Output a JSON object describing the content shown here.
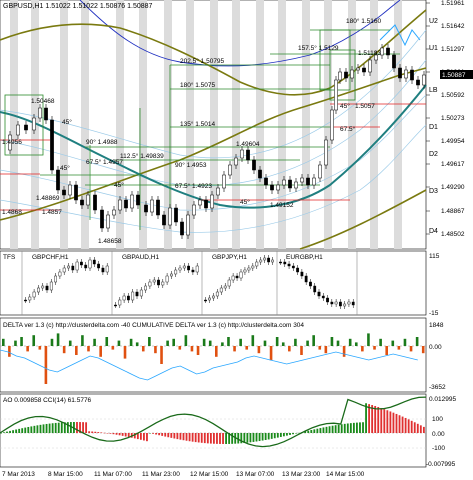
{
  "main": {
    "title": "GBPUSD,H1  1.51022  1.51022  1.50876  1.50887",
    "last_price": "1.50887",
    "price_axis": [
      "1.51961",
      "1.51642",
      "1.51297",
      "1.51001",
      "1.50592",
      "1.50273",
      "1.49954",
      "1.49617",
      "1.49290",
      "1.48867",
      "1.48502"
    ],
    "levels": {
      "U2": "U2",
      "U1": "U1",
      "LB": "LB",
      "D1": "D1",
      "D2": "D2",
      "D3": "D3",
      "D4": "D4"
    },
    "annotations": {
      "a1": "180° 1.5160",
      "a2": "157.5° 1.5129",
      "a3": "1.51183",
      "a4": "202.5° 1.50795",
      "a5": "180° 1.5075",
      "a6": "1.50468",
      "a7": "135° 1.5014",
      "a8": "1.49604",
      "a9": "90° 1.4988",
      "a10": "112.5° 1.49839",
      "a11": "67.5° 1.4957",
      "a12": "90° 1.4953",
      "a13": "67.5° 1.4923",
      "a14": "1.49152",
      "a15": "1.48869",
      "a16": "1.48658",
      "a17": "45°",
      "a18": "45°",
      "a19": "45°",
      "a20": "45°",
      "a21": "45°",
      "a22": "45°",
      "a23": "67.5°",
      "a24": "1.5057",
      "a25": "1.4956",
      "a26": "1.4868",
      "a27": "1.4857"
    }
  },
  "tfs": {
    "label": "TFS",
    "pairs": [
      "GBPCHF,H1",
      "GBPAUD,H1",
      "GBPJPY,H1",
      "EURGBP,H1"
    ],
    "axis": [
      "115",
      "-15"
    ]
  },
  "delta": {
    "title": "DELTA ver 1.3 (c) http://clusterdelta.com  -40  CUMULATIVE DELTA  ver 1.3 (c) http://clusterdelta.com  304",
    "axis": [
      "1848",
      "0.00",
      "-3652"
    ]
  },
  "ao": {
    "title": "AO 0.009858  CCI(14) 61.5776",
    "axis": [
      "0.012995",
      "100",
      "0.00",
      "-100",
      "-0.007995"
    ]
  },
  "time_axis": [
    "7 Mar 2013",
    "8 Mar 15:00",
    "11 Mar 07:00",
    "11 Mar 23:00",
    "12 Mar 15:00",
    "13 Mar 07:00",
    "13 Mar 23:00",
    "14 Mar 15:00"
  ],
  "colors": {
    "olive": "#7a7a10",
    "teal": "#1f7f80",
    "navy": "#2030c0",
    "green": "#2c8a2c",
    "red": "#e02020",
    "bluelite": "#2aa7ff",
    "gray": "#d8d8d8"
  }
}
